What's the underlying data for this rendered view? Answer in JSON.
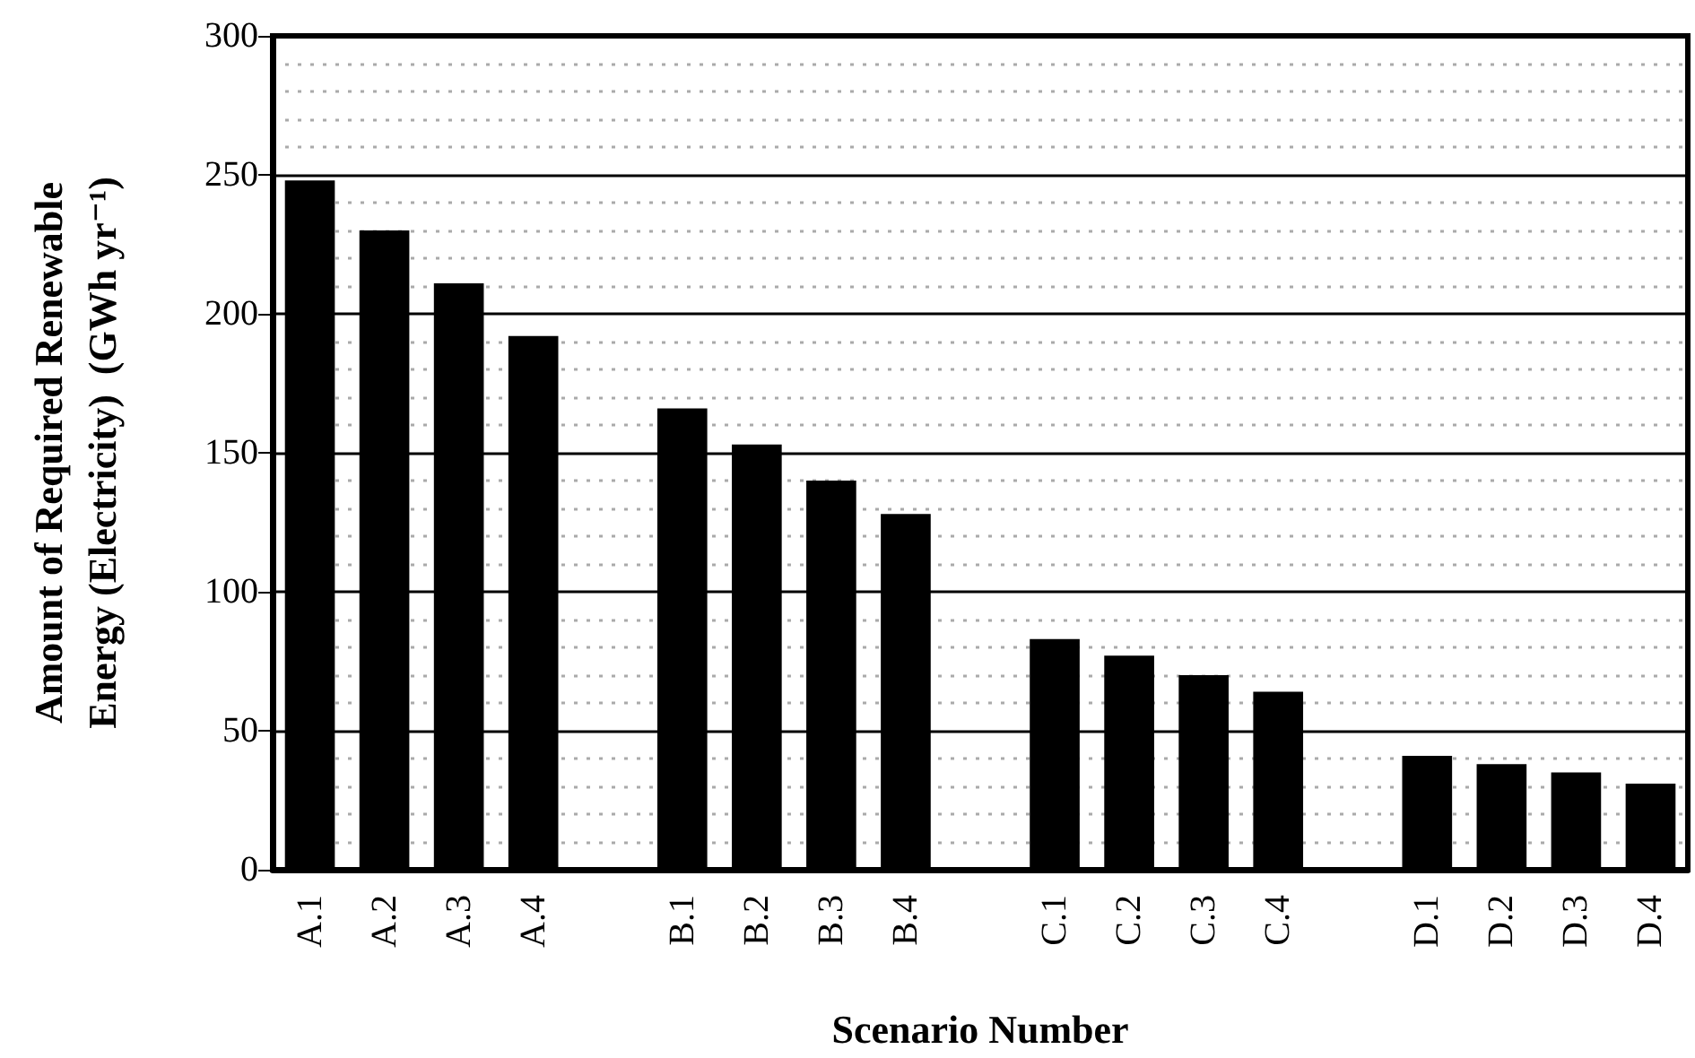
{
  "chart_data": {
    "type": "bar",
    "xlabel": "Scenario Number",
    "ylabel": "Amount of Required Renewable\nEnergy (Electricity)  (GWh yr⁻¹)",
    "categories": [
      "A.1",
      "A.2",
      "A.3",
      "A.4",
      null,
      "B.1",
      "B.2",
      "B.3",
      "B.4",
      null,
      "C.1",
      "C.2",
      "C.3",
      "C.4",
      null,
      "D.1",
      "D.2",
      "D.3",
      "D.4"
    ],
    "values": [
      248,
      230,
      211,
      192,
      null,
      166,
      153,
      140,
      128,
      null,
      83,
      77,
      70,
      64,
      null,
      41,
      38,
      35,
      31
    ],
    "color": "#000000",
    "ylim": [
      0,
      300
    ],
    "yticks": [
      0,
      50,
      100,
      150,
      200,
      250,
      300
    ],
    "grid": "y"
  }
}
